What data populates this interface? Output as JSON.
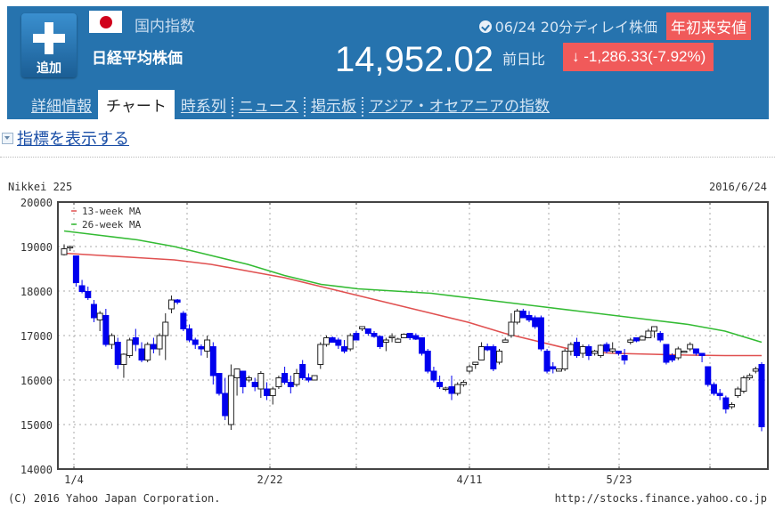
{
  "header": {
    "add_button_label": "追加",
    "category": "国内指数",
    "name": "日経平均株価",
    "timestamp": "06/24 20分ディレイ株価",
    "badge": "年初来安値",
    "price": "14,952.02",
    "change_label": "前日比",
    "change": "-1,286.33",
    "change_pct": "(-7.92%)",
    "change_direction": "down",
    "colors": {
      "header_bg": "#2673ae",
      "badge_bg": "#f05a5a"
    }
  },
  "tabs": [
    {
      "label": "詳細情報",
      "active": false
    },
    {
      "label": "チャート",
      "active": true
    },
    {
      "label": "時系列",
      "active": false
    },
    {
      "label": "ニュース",
      "active": false
    },
    {
      "label": "掲示板",
      "active": false
    },
    {
      "label": "アジア・オセアニアの指数",
      "active": false
    }
  ],
  "indicator_toggle": "指標を表示する",
  "chart": {
    "title": "Nikkei 225",
    "date": "2016/6/24",
    "copyright": "(C) 2016 Yahoo Japan Corporation.",
    "url": "http://stocks.finance.yahoo.co.jp"
  },
  "chart_data": {
    "type": "candlestick",
    "title": "Nikkei 225",
    "subtitle": "2016/6/24",
    "xlabel": "",
    "ylabel": "",
    "ylim": [
      14000,
      20000
    ],
    "yticks": [
      14000,
      15000,
      16000,
      17000,
      18000,
      19000,
      20000
    ],
    "xtick_labels": [
      "1/4",
      "2/22",
      "4/11",
      "5/23"
    ],
    "grid": true,
    "legend": [
      {
        "name": "13-week MA",
        "color": "#e05050"
      },
      {
        "name": "26-week MA",
        "color": "#33bb33"
      }
    ],
    "legend_position": "top-left",
    "up_color": "#ffffff",
    "down_color": "#0000ee",
    "candles_ohlc": [
      [
        18818,
        19050,
        18800,
        18950
      ],
      [
        18990,
        19020,
        18900,
        19000
      ],
      [
        18790,
        18800,
        18100,
        18190
      ],
      [
        18120,
        18250,
        17950,
        17990
      ],
      [
        17990,
        18100,
        17800,
        17850
      ],
      [
        17700,
        17800,
        17300,
        17400
      ],
      [
        17350,
        17550,
        17100,
        17500
      ],
      [
        17450,
        17600,
        16750,
        16800
      ],
      [
        16800,
        17050,
        16700,
        17000
      ],
      [
        16850,
        16950,
        16250,
        16350
      ],
      [
        16350,
        16600,
        16050,
        16580
      ],
      [
        16550,
        16950,
        16500,
        16900
      ],
      [
        16950,
        17150,
        16650,
        16800
      ],
      [
        16700,
        16850,
        16400,
        16450
      ],
      [
        16450,
        16850,
        16400,
        16800
      ],
      [
        16800,
        16950,
        16600,
        16700
      ],
      [
        16700,
        17050,
        16550,
        17000
      ],
      [
        17000,
        17500,
        16450,
        17300
      ],
      [
        17600,
        17900,
        17500,
        17800
      ],
      [
        17800,
        17820,
        17700,
        17750
      ],
      [
        17500,
        17550,
        17100,
        17150
      ],
      [
        17150,
        17250,
        16850,
        16900
      ],
      [
        16900,
        16950,
        16700,
        16800
      ],
      [
        16750,
        16800,
        16550,
        16700
      ],
      [
        16650,
        17000,
        16500,
        16900
      ],
      [
        16750,
        16850,
        15900,
        16100
      ],
      [
        16150,
        16150,
        15650,
        15700
      ],
      [
        15700,
        16050,
        15100,
        15200
      ],
      [
        15000,
        16350,
        14880,
        16100
      ],
      [
        16050,
        16250,
        15650,
        16250
      ],
      [
        16200,
        16200,
        15700,
        15850
      ],
      [
        16000,
        16100,
        15950,
        16050
      ],
      [
        15950,
        16050,
        15750,
        15850
      ],
      [
        15800,
        16200,
        15600,
        16150
      ],
      [
        15800,
        15950,
        15550,
        15650
      ],
      [
        15650,
        15850,
        15450,
        15800
      ],
      [
        15850,
        16100,
        15800,
        16050
      ],
      [
        16150,
        16300,
        15900,
        15950
      ],
      [
        15950,
        16100,
        15700,
        15850
      ],
      [
        15900,
        16250,
        15850,
        16150
      ],
      [
        16350,
        16450,
        16000,
        16050
      ],
      [
        16050,
        16150,
        15950,
        16000
      ],
      [
        16000,
        16100,
        16050,
        16100
      ],
      [
        16350,
        16850,
        16250,
        16800
      ],
      [
        16800,
        17000,
        16750,
        16950
      ],
      [
        16950,
        16980,
        16850,
        16850
      ],
      [
        16900,
        16950,
        16700,
        16780
      ],
      [
        16750,
        16900,
        16600,
        16650
      ],
      [
        16700,
        17050,
        16650,
        17000
      ],
      [
        17050,
        17100,
        16900,
        16900
      ],
      [
        17150,
        17200,
        17100,
        17200
      ],
      [
        17150,
        17150,
        17000,
        17050
      ],
      [
        17050,
        17100,
        16950,
        16980
      ],
      [
        16980,
        17000,
        16700,
        16750
      ],
      [
        16850,
        16950,
        16650,
        16900
      ],
      [
        16950,
        17050,
        16850,
        16980
      ],
      [
        16850,
        16950,
        16900,
        16920
      ],
      [
        16950,
        17050,
        16950,
        17030
      ],
      [
        17050,
        17050,
        16900,
        16950
      ],
      [
        17000,
        17050,
        16900,
        16920
      ],
      [
        16950,
        16950,
        16550,
        16600
      ],
      [
        16650,
        16700,
        16150,
        16200
      ],
      [
        16200,
        16300,
        15950,
        16000
      ],
      [
        15950,
        16100,
        15800,
        15850
      ],
      [
        15800,
        15850,
        15750,
        15820
      ],
      [
        15850,
        16100,
        15550,
        15700
      ],
      [
        15700,
        15950,
        15650,
        15900
      ],
      [
        15900,
        15850,
        16000,
        15950
      ],
      [
        16200,
        16350,
        16150,
        16300
      ],
      [
        16350,
        16400,
        16250,
        16400
      ],
      [
        16450,
        16850,
        16450,
        16750
      ],
      [
        16750,
        16820,
        16650,
        16680
      ],
      [
        16750,
        16800,
        16200,
        16250
      ],
      [
        16400,
        16700,
        16350,
        16650
      ],
      [
        16850,
        16950,
        16850,
        16900
      ],
      [
        17000,
        17500,
        16950,
        17300
      ],
      [
        17300,
        17600,
        17250,
        17550
      ],
      [
        17550,
        17600,
        17400,
        17400
      ],
      [
        17450,
        17550,
        17300,
        17350
      ],
      [
        17400,
        17450,
        17150,
        17200
      ],
      [
        17400,
        17450,
        16650,
        16700
      ],
      [
        16650,
        16700,
        16150,
        16200
      ],
      [
        16300,
        16400,
        16150,
        16250
      ],
      [
        16200,
        16250,
        16250,
        16250
      ],
      [
        16250,
        16700,
        16200,
        16650
      ],
      [
        16650,
        16850,
        16550,
        16800
      ],
      [
        16850,
        16950,
        16500,
        16550
      ],
      [
        16600,
        16800,
        16500,
        16750
      ],
      [
        16750,
        16800,
        16450,
        16550
      ],
      [
        16600,
        16680,
        16550,
        16650
      ],
      [
        16550,
        16800,
        16500,
        16780
      ],
      [
        16800,
        16850,
        16600,
        16650
      ],
      [
        16650,
        16850,
        16600,
        16700
      ],
      [
        16650,
        16650,
        16550,
        16600
      ],
      [
        16550,
        16700,
        16350,
        16450
      ],
      [
        16850,
        16950,
        16800,
        16900
      ],
      [
        16950,
        16950,
        16850,
        16880
      ],
      [
        16900,
        17000,
        16900,
        16980
      ],
      [
        16950,
        17150,
        16950,
        17100
      ],
      [
        17100,
        17200,
        16950,
        17200
      ],
      [
        17050,
        17100,
        16850,
        16900
      ],
      [
        16800,
        16800,
        16350,
        16400
      ],
      [
        16550,
        16600,
        16400,
        16450
      ],
      [
        16500,
        16750,
        16450,
        16700
      ],
      [
        16650,
        16650,
        16650,
        16650
      ],
      [
        16700,
        16850,
        16650,
        16800
      ],
      [
        16700,
        16700,
        16550,
        16600
      ],
      [
        16600,
        16600,
        16400,
        16550
      ],
      [
        16300,
        16300,
        15850,
        15900
      ],
      [
        15900,
        15950,
        15650,
        15700
      ],
      [
        15700,
        15800,
        15550,
        15650
      ],
      [
        15600,
        15650,
        15250,
        15350
      ],
      [
        15400,
        15500,
        15350,
        15450
      ],
      [
        15650,
        15850,
        15600,
        15800
      ],
      [
        15750,
        16100,
        15700,
        16050
      ],
      [
        16050,
        16150,
        16000,
        16100
      ],
      [
        16200,
        16300,
        16150,
        16250
      ],
      [
        16350,
        16400,
        14850,
        14950
      ]
    ],
    "ma13": [
      18850,
      18800,
      18750,
      18700,
      18600,
      18450,
      18300,
      18100,
      17900,
      17700,
      17500,
      17300,
      17050,
      16850,
      16650,
      16600,
      16580,
      16560,
      16550,
      16550
    ],
    "ma26": [
      19350,
      19250,
      19150,
      19000,
      18800,
      18600,
      18350,
      18150,
      18050,
      18000,
      17950,
      17850,
      17750,
      17650,
      17550,
      17450,
      17350,
      17250,
      17100,
      16850
    ]
  }
}
